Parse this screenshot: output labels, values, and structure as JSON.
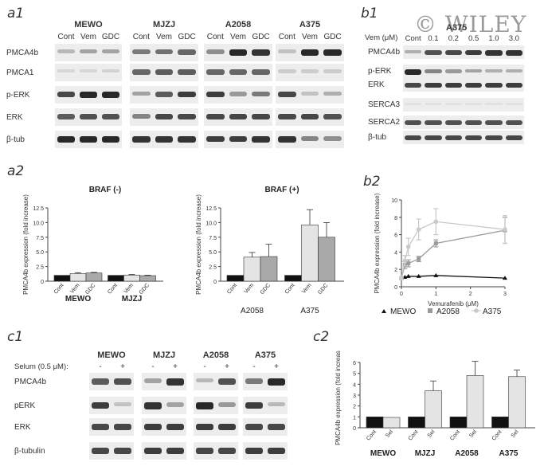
{
  "watermark": {
    "text": "© WILEY"
  },
  "panels": {
    "a1": "a1",
    "a2": "a2",
    "b1": "b1",
    "b2": "b2",
    "c1": "c1",
    "c2": "c2"
  },
  "a1": {
    "cell_lines": [
      "MEWO",
      "MJZJ",
      "A2058",
      "A375"
    ],
    "conditions": [
      "Cont",
      "Vem",
      "GDC"
    ],
    "proteins": [
      "PMCA4b",
      "PMCA1",
      "p-ERK",
      "ERK",
      "β-tub"
    ],
    "intensity": [
      [
        [
          0.25,
          0.35,
          0.35
        ],
        [
          0.55,
          0.6,
          0.65
        ],
        [
          0.45,
          0.95,
          0.9
        ],
        [
          0.2,
          0.95,
          0.95
        ]
      ],
      [
        [
          0.1,
          0.1,
          0.12
        ],
        [
          0.65,
          0.7,
          0.7
        ],
        [
          0.65,
          0.65,
          0.65
        ],
        [
          0.15,
          0.15,
          0.15
        ]
      ],
      [
        [
          0.8,
          0.95,
          0.95
        ],
        [
          0.35,
          0.7,
          0.85
        ],
        [
          0.85,
          0.4,
          0.55
        ],
        [
          0.8,
          0.2,
          0.3
        ]
      ],
      [
        [
          0.7,
          0.75,
          0.75
        ],
        [
          0.5,
          0.8,
          0.8
        ],
        [
          0.8,
          0.8,
          0.8
        ],
        [
          0.8,
          0.8,
          0.75
        ]
      ],
      [
        [
          0.95,
          0.95,
          0.95
        ],
        [
          0.9,
          0.9,
          0.9
        ],
        [
          0.85,
          0.85,
          0.9
        ],
        [
          0.9,
          0.5,
          0.45
        ]
      ]
    ]
  },
  "b1": {
    "cell_line": "A375",
    "dose_label": "Vem (μM)",
    "doses": [
      "Cont",
      "0.1",
      "0.2",
      "0.5",
      "1.0",
      "3.0"
    ],
    "proteins": [
      "PMCA4b",
      "p-ERK",
      "ERK",
      "SERCA3",
      "SERCA2",
      "β-tub"
    ],
    "intensity": [
      [
        0.3,
        0.75,
        0.8,
        0.85,
        0.9,
        0.9
      ],
      [
        0.95,
        0.5,
        0.4,
        0.35,
        0.3,
        0.3
      ],
      [
        0.8,
        0.85,
        0.85,
        0.85,
        0.85,
        0.85
      ],
      [
        0.05,
        0.05,
        0.05,
        0.05,
        0.05,
        0.05
      ],
      [
        0.75,
        0.75,
        0.75,
        0.75,
        0.75,
        0.75
      ],
      [
        0.8,
        0.8,
        0.8,
        0.8,
        0.8,
        0.8
      ]
    ]
  },
  "c1": {
    "cell_lines": [
      "MEWO",
      "MJZJ",
      "A2058",
      "A375"
    ],
    "treatment_label": "Selum (0.5 μM):",
    "signs": [
      "-",
      "+"
    ],
    "proteins": [
      "PMCA4b",
      "pERK",
      "ERK",
      "β-tubulin"
    ],
    "intensity": [
      [
        [
          0.7,
          0.75
        ],
        [
          0.35,
          0.9
        ],
        [
          0.25,
          0.75
        ],
        [
          0.55,
          0.95
        ]
      ],
      [
        [
          0.85,
          0.2
        ],
        [
          0.9,
          0.35
        ],
        [
          0.95,
          0.4
        ],
        [
          0.85,
          0.25
        ]
      ],
      [
        [
          0.8,
          0.8
        ],
        [
          0.85,
          0.85
        ],
        [
          0.85,
          0.85
        ],
        [
          0.8,
          0.8
        ]
      ],
      [
        [
          0.8,
          0.8
        ],
        [
          0.85,
          0.85
        ],
        [
          0.8,
          0.8
        ],
        [
          0.85,
          0.85
        ]
      ]
    ]
  },
  "chart_data": [
    {
      "panel": "a2-left",
      "type": "bar",
      "title": "BRAF (-)",
      "ylabel": "PMCA4b expression (fold increase)",
      "ylim": [
        0,
        12.5
      ],
      "yticks": [
        "0",
        "2.5",
        "5.0",
        "7.5",
        "10.0",
        "12.5"
      ],
      "groups": [
        "MEWO",
        "MJZJ"
      ],
      "categories": [
        "Cont",
        "Vem",
        "GDC"
      ],
      "colors": [
        "#111111",
        "#e4e4e4",
        "#a9a9a9"
      ],
      "values": [
        [
          1.0,
          1.3,
          1.4
        ],
        [
          1.0,
          1.05,
          0.95
        ]
      ],
      "errors": [
        [
          0,
          0.15,
          0.1
        ],
        [
          0,
          0.1,
          0.08
        ]
      ]
    },
    {
      "panel": "a2-right",
      "type": "bar",
      "title": "BRAF (+)",
      "ylabel": "PMCA4b expression (fold increase)",
      "ylim": [
        0,
        12.5
      ],
      "yticks": [
        "0",
        "2.5",
        "5.0",
        "7.5",
        "10.0",
        "12.5"
      ],
      "groups": [
        "A2058",
        "A375"
      ],
      "categories": [
        "Cont",
        "Vem",
        "GDC"
      ],
      "colors": [
        "#111111",
        "#e4e4e4",
        "#a9a9a9"
      ],
      "values": [
        [
          1.0,
          4.1,
          4.2
        ],
        [
          1.0,
          9.6,
          7.5
        ]
      ],
      "errors": [
        [
          0,
          0.8,
          2.1
        ],
        [
          0,
          2.6,
          2.5
        ]
      ]
    },
    {
      "panel": "b2",
      "type": "line",
      "xlabel": "Vemurafenib (μM)",
      "ylabel": "PMCA4b expression (fold increase)",
      "xlim": [
        0,
        3
      ],
      "ylim": [
        0,
        10
      ],
      "xticks": [
        "0",
        "1",
        "2",
        "3"
      ],
      "yticks": [
        "0",
        "2",
        "4",
        "6",
        "8",
        "10"
      ],
      "series": [
        {
          "name": "MEWO",
          "color": "#111111",
          "marker": "triangle",
          "x": [
            0,
            0.1,
            0.2,
            0.5,
            1.0,
            3.0
          ],
          "y": [
            1.0,
            1.1,
            1.2,
            1.2,
            1.3,
            1.0
          ],
          "err": [
            0,
            0,
            0,
            0,
            0,
            0
          ]
        },
        {
          "name": "A2058",
          "color": "#9a9a9a",
          "marker": "square",
          "x": [
            0,
            0.1,
            0.2,
            0.5,
            1.0,
            3.0
          ],
          "y": [
            1.0,
            2.5,
            2.7,
            3.2,
            5.0,
            6.5
          ],
          "err": [
            0,
            0.4,
            0.4,
            0.3,
            0.4,
            1.5
          ]
        },
        {
          "name": "A375",
          "color": "#c9c9c9",
          "marker": "circle",
          "x": [
            0,
            0.1,
            0.2,
            0.5,
            1.0,
            3.0
          ],
          "y": [
            1.0,
            3.0,
            4.6,
            6.6,
            7.5,
            6.6
          ],
          "err": [
            0,
            0.6,
            1.0,
            1.2,
            1.5,
            1.6
          ]
        }
      ]
    },
    {
      "panel": "c2",
      "type": "bar",
      "ylabel": "PMCA4b expression (fold increase)",
      "ylim": [
        0,
        6
      ],
      "yticks": [
        "0",
        "1",
        "2",
        "3",
        "4",
        "5",
        "6"
      ],
      "groups": [
        "MEWO",
        "MJZJ",
        "A2058",
        "A375"
      ],
      "categories": [
        "Cont",
        "Sel"
      ],
      "colors": [
        "#111111",
        "#e4e4e4"
      ],
      "values": [
        [
          1.0,
          0.95
        ],
        [
          1.0,
          3.4
        ],
        [
          1.0,
          4.8
        ],
        [
          1.0,
          4.7
        ]
      ],
      "errors": [
        [
          0,
          0
        ],
        [
          0,
          0.9
        ],
        [
          0,
          1.3
        ],
        [
          0,
          0.6
        ]
      ]
    }
  ]
}
